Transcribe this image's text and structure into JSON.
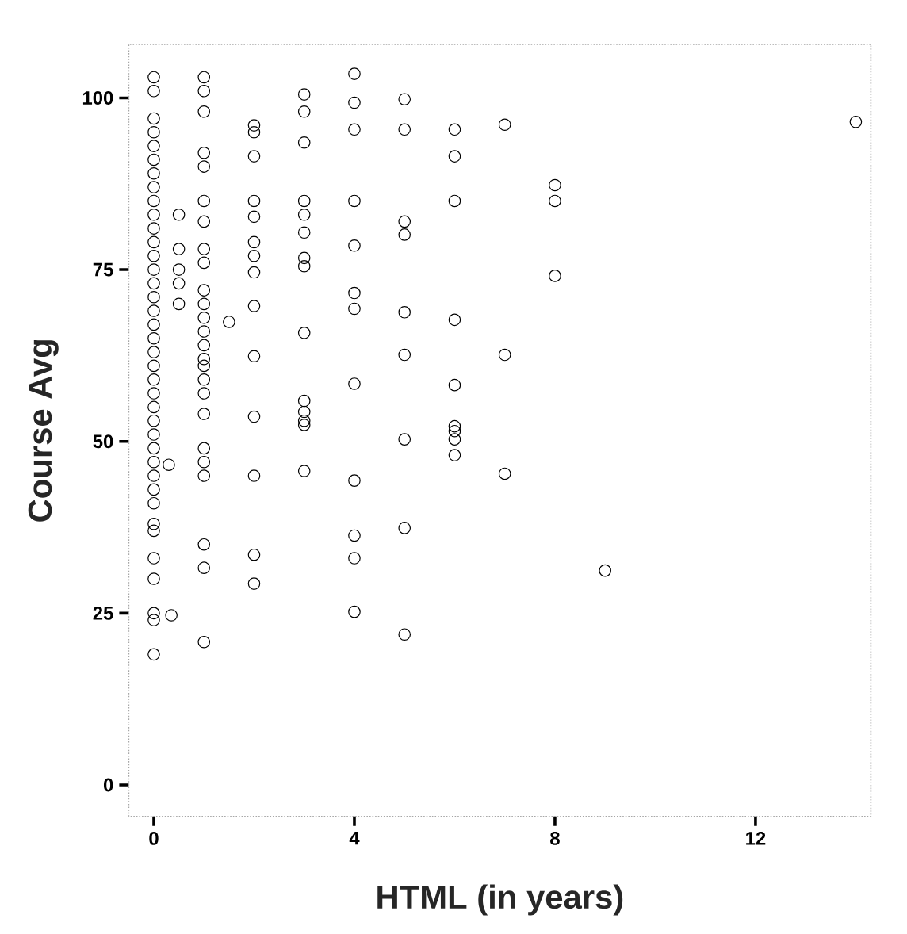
{
  "chart_data": {
    "type": "scatter",
    "xlabel": "HTML (in years)",
    "ylabel": "Course Avg",
    "xlim": [
      -0.5,
      14.3
    ],
    "ylim": [
      -4.6,
      107.8
    ],
    "xticks": [
      0,
      4,
      8,
      12
    ],
    "yticks": [
      0,
      25,
      50,
      75,
      100
    ],
    "marker": "circle",
    "grid": false,
    "series": [
      {
        "color": "#000000",
        "x": [
          0,
          0,
          0,
          0,
          0,
          0,
          0,
          0,
          0,
          0,
          0,
          0,
          0,
          0,
          0,
          0,
          0,
          0,
          0,
          0,
          0,
          0,
          0,
          0,
          0,
          0,
          0,
          0,
          0,
          0,
          0,
          0,
          0,
          0,
          0,
          0,
          0,
          0,
          0.3,
          0.35,
          0.5,
          0.5,
          0.5,
          0.5,
          0.5,
          1,
          1,
          1,
          1,
          1,
          1,
          1,
          1,
          1,
          1,
          1,
          1,
          1,
          1,
          1,
          1,
          1,
          1,
          1,
          1,
          1,
          1,
          1,
          1,
          1,
          1.5,
          2,
          2,
          2,
          2,
          2,
          2,
          2,
          2,
          2,
          2,
          2,
          2,
          2,
          2,
          3,
          3,
          3,
          3,
          3,
          3,
          3,
          3,
          3,
          3,
          3,
          3,
          3,
          3,
          4,
          4,
          4,
          4,
          4,
          4,
          4,
          4,
          4,
          4,
          4,
          4,
          5,
          5,
          5,
          5,
          5,
          5,
          5,
          5,
          5,
          6,
          6,
          6,
          6,
          6,
          6,
          6,
          6,
          6,
          7,
          7,
          7,
          8,
          8,
          8,
          9,
          14
        ],
        "values": [
          103,
          101,
          97,
          95,
          93,
          91,
          89,
          87,
          85,
          83,
          81,
          79,
          77,
          75,
          73,
          71,
          69,
          67,
          65,
          63,
          61,
          59,
          57,
          55,
          53,
          51,
          49,
          47,
          45,
          43,
          41,
          38,
          37,
          33,
          30,
          25,
          24,
          19,
          46.6,
          24.7,
          83,
          78,
          75,
          73,
          70,
          103,
          101,
          98,
          92,
          90,
          85,
          82,
          78,
          76,
          72,
          70,
          68,
          66,
          64,
          62,
          61,
          59,
          57,
          54,
          49,
          47,
          45,
          35,
          31.6,
          20.8,
          67.4,
          96,
          95,
          91.5,
          85,
          82.7,
          79,
          77,
          74.6,
          69.7,
          62.4,
          53.6,
          45,
          33.5,
          29.3,
          100.5,
          98,
          93.5,
          85,
          83,
          80.4,
          76.7,
          75.5,
          65.8,
          55.9,
          54.3,
          53,
          52.4,
          45.7,
          103.5,
          99.3,
          95.4,
          85,
          78.5,
          71.6,
          69.3,
          58.4,
          44.3,
          36.3,
          33,
          25.2,
          99.8,
          95.4,
          82,
          80.1,
          68.8,
          62.6,
          50.3,
          37.4,
          21.9,
          95.4,
          91.5,
          85,
          67.7,
          58.2,
          52.2,
          51.5,
          50.3,
          48,
          96.1,
          62.6,
          45.3,
          87.3,
          85,
          74.1,
          31.2,
          96.5
        ]
      }
    ]
  }
}
